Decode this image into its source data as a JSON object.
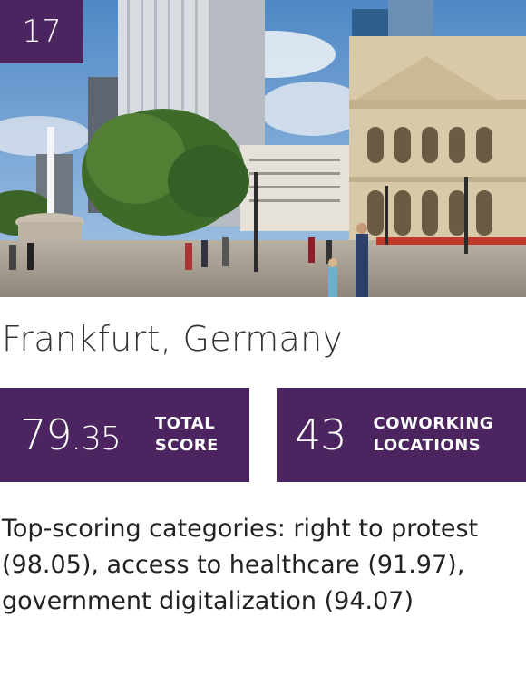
{
  "rank": "17",
  "city": "Frankfurt, Germany",
  "stats": {
    "score_whole": "79",
    "score_decimals": ".35",
    "score_label_line1": "TOTAL",
    "score_label_line2": "SCORE",
    "coworking_value": "43",
    "coworking_label_line1": "COWORKING",
    "coworking_label_line2": "LOCATIONS"
  },
  "categories_text": "Top-scoring categories: right to protest (98.05), access to healthcare (91.97), government digitalization (94.07)",
  "colors": {
    "accent": "#4c2560"
  }
}
